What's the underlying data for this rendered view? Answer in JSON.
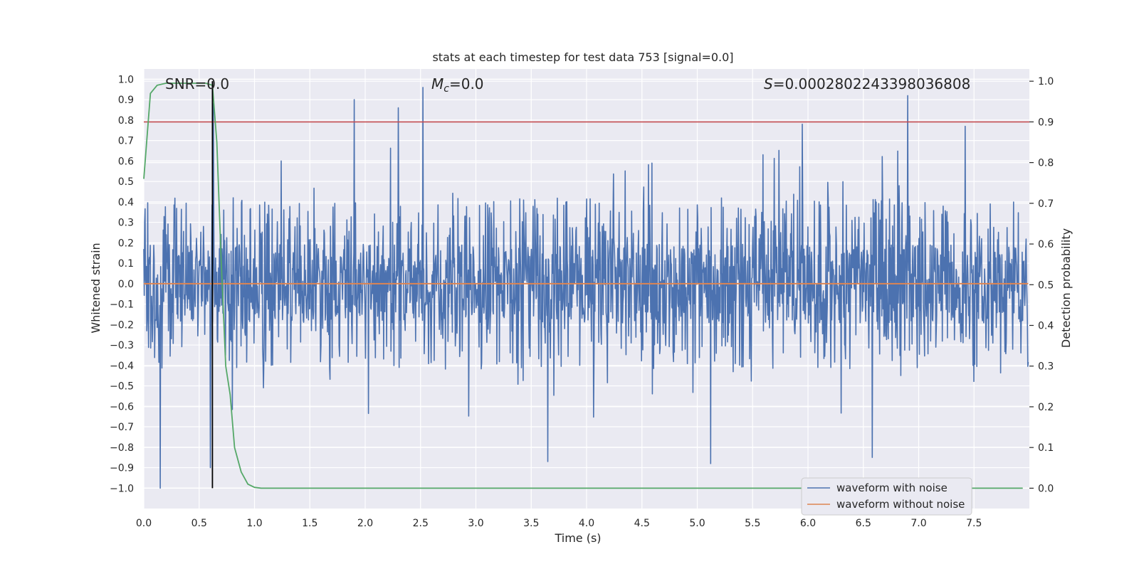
{
  "chart_data": {
    "type": "line",
    "title": "stats at each timestep for test data 753 [signal=0.0]",
    "xlabel": "Time (s)",
    "ylabel_left": "Whitened strain",
    "ylabel_right": "Detection probability",
    "xlim": [
      0.0,
      8.0
    ],
    "ylim_left": [
      -1.1,
      1.05
    ],
    "ylim_right": [
      -0.05,
      1.03
    ],
    "x_ticks": [
      "0.0",
      "0.5",
      "1.0",
      "1.5",
      "2.0",
      "2.5",
      "3.0",
      "3.5",
      "4.0",
      "4.5",
      "5.0",
      "5.5",
      "6.0",
      "6.5",
      "7.0",
      "7.5"
    ],
    "y_left_ticks": [
      "1.0",
      "0.9",
      "0.8",
      "0.7",
      "0.6",
      "0.5",
      "0.4",
      "0.3",
      "0.2",
      "0.1",
      "0.0",
      "−0.1",
      "−0.2",
      "−0.3",
      "−0.4",
      "−0.5",
      "−0.6",
      "−0.7",
      "−0.8",
      "−0.9",
      "−1.0"
    ],
    "y_right_ticks": [
      "1.0",
      "0.9",
      "0.8",
      "0.7",
      "0.6",
      "0.5",
      "0.4",
      "0.3",
      "0.2",
      "0.1",
      "0.0"
    ],
    "annotations": {
      "snr": "SNR=0.0",
      "mc_symbol": "M",
      "mc_sub": "c",
      "mc_value": "=0.0",
      "s_symbol": "S",
      "s_value": "=0.0002802243398036808"
    },
    "threshold": 0.9,
    "marker_time": 0.62,
    "noise_series": {
      "name": "waveform with noise",
      "color": "#4c72b0",
      "t_start": 0.0,
      "t_end": 7.99,
      "n_points": 2048,
      "typical_envelope_upper": 0.35,
      "typical_envelope_lower": -0.35,
      "peaks": [
        {
          "t": 0.15,
          "y": -1.0
        },
        {
          "t": 0.6,
          "y": -0.9
        },
        {
          "t": 0.63,
          "y": 0.88
        },
        {
          "t": 1.9,
          "y": 0.9
        },
        {
          "t": 2.3,
          "y": 0.86
        },
        {
          "t": 2.52,
          "y": 0.96
        },
        {
          "t": 3.65,
          "y": -0.87
        },
        {
          "t": 5.12,
          "y": -0.88
        },
        {
          "t": 5.95,
          "y": 0.78
        },
        {
          "t": 6.58,
          "y": -0.85
        },
        {
          "t": 6.9,
          "y": 0.92
        },
        {
          "t": 7.42,
          "y": 0.77
        }
      ]
    },
    "clean_series": {
      "name": "waveform without noise",
      "color": "#dd8452",
      "x": [
        0.0,
        7.99
      ],
      "y": [
        0.0,
        0.0
      ]
    },
    "probability_series": {
      "color": "#55a868",
      "x": [
        0.0,
        0.06,
        0.12,
        0.2,
        0.3,
        0.4,
        0.5,
        0.56,
        0.62,
        0.66,
        0.7,
        0.74,
        0.78,
        0.82,
        0.88,
        0.94,
        1.0,
        1.06,
        1.2,
        1.5,
        2.0,
        3.0,
        4.0,
        5.0,
        6.0,
        7.0,
        7.94
      ],
      "y": [
        0.76,
        0.97,
        0.99,
        0.995,
        0.995,
        0.995,
        0.995,
        0.995,
        0.99,
        0.85,
        0.55,
        0.3,
        0.23,
        0.1,
        0.04,
        0.01,
        0.002,
        0.0,
        0.0,
        0.0,
        0.0,
        0.0,
        0.0,
        0.0,
        0.0,
        0.0,
        0.0
      ]
    },
    "legend": {
      "position": "lower-right",
      "entries": [
        {
          "label": "waveform with noise",
          "color": "#4c72b0"
        },
        {
          "label": "waveform without noise",
          "color": "#dd8452"
        }
      ]
    },
    "colors": {
      "plot_background": "#eaeaf2",
      "grid": "#ffffff",
      "threshold_line": "#c44e52",
      "marker_line": "#000000"
    }
  }
}
